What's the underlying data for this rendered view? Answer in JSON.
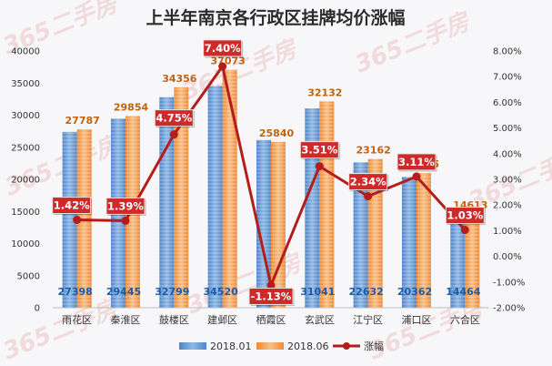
{
  "watermark": "365二手房",
  "chart_data": {
    "type": "bar+line",
    "title": "上半年南京各行政区挂牌均价涨幅",
    "categories": [
      "雨花区",
      "秦淮区",
      "鼓楼区",
      "建邺区",
      "栖霞区",
      "玄武区",
      "江宁区",
      "浦口区",
      "六合区"
    ],
    "series": [
      {
        "name": "2018.01",
        "kind": "bar",
        "axis": "left",
        "values": [
          27398,
          29445,
          32799,
          34520,
          26135,
          31041,
          22632,
          20362,
          14464
        ]
      },
      {
        "name": "2018.06",
        "kind": "bar",
        "axis": "left",
        "values": [
          27787,
          29854,
          34356,
          37073,
          25840,
          32132,
          23162,
          20995,
          14613
        ]
      },
      {
        "name": "涨幅",
        "kind": "line",
        "axis": "right",
        "values": [
          1.42,
          1.39,
          4.75,
          7.4,
          -1.13,
          3.51,
          2.34,
          3.11,
          1.03
        ],
        "labels": [
          "1.42%",
          "1.39%",
          "4.75%",
          "7.40%",
          "-1.13%",
          "3.51%",
          "2.34%",
          "3.11%",
          "1.03%"
        ]
      }
    ],
    "ylim_left": [
      0,
      40000
    ],
    "yticks_left": [
      "0",
      "5000",
      "10000",
      "15000",
      "20000",
      "25000",
      "30000",
      "35000",
      "40000"
    ],
    "ylim_right": [
      -2.0,
      8.0
    ],
    "yticks_right": [
      "-2.00%",
      "-1.00%",
      "0.00%",
      "1.00%",
      "2.00%",
      "3.00%",
      "4.00%",
      "5.00%",
      "6.00%",
      "7.00%",
      "8.00%"
    ],
    "legend_position": "bottom",
    "grid": false,
    "colors": {
      "series_2018_01": "#6a9fd8",
      "series_2018_06": "#f2a15a",
      "growth_line": "#b51c1c",
      "badge": "#cf2a2a"
    }
  }
}
